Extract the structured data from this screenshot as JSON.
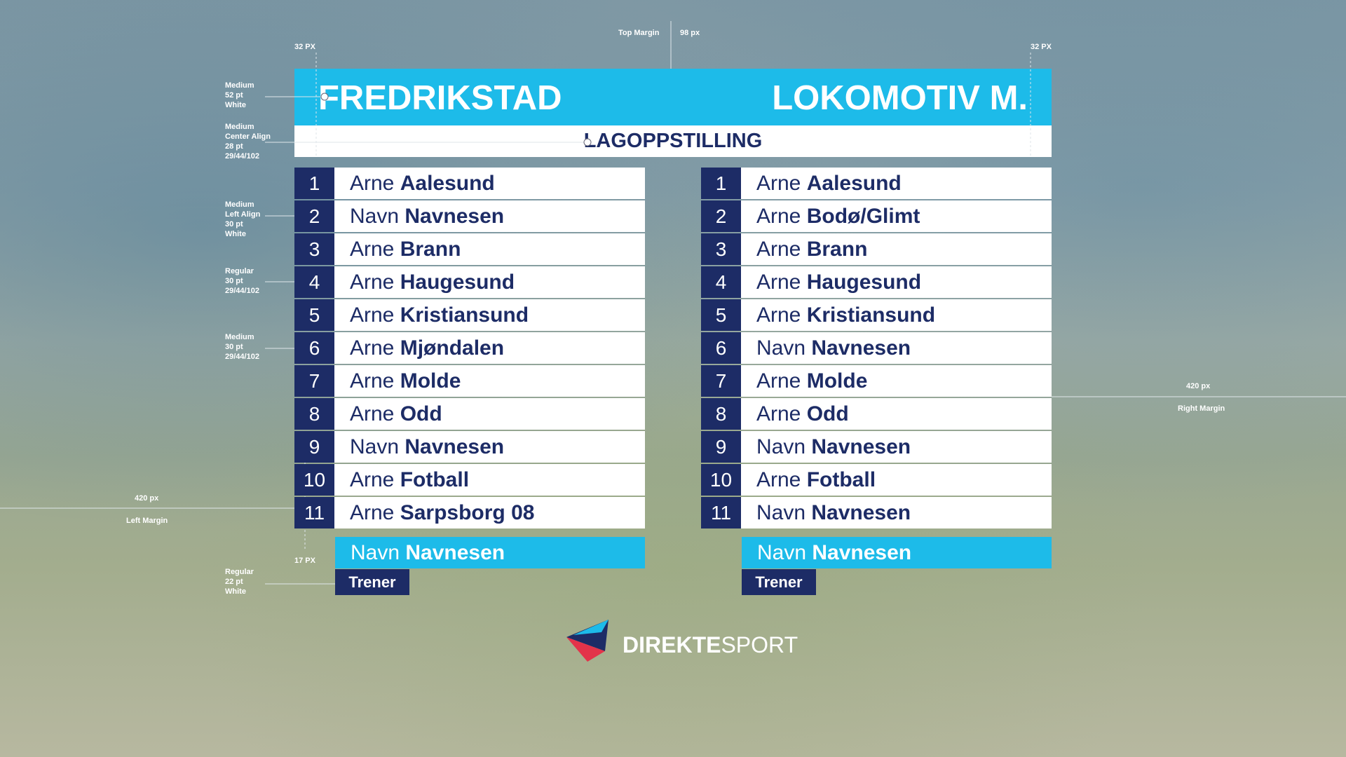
{
  "header": {
    "home": "FREDRIKSTAD",
    "away": "LOKOMOTIV M.",
    "title": "LAGOPPSTILLING"
  },
  "teams": [
    {
      "players": [
        {
          "number": "1",
          "first": "Arne",
          "last": "Aalesund"
        },
        {
          "number": "2",
          "first": "Navn",
          "last": "Navnesen"
        },
        {
          "number": "3",
          "first": "Arne",
          "last": "Brann"
        },
        {
          "number": "4",
          "first": "Arne",
          "last": "Haugesund"
        },
        {
          "number": "5",
          "first": "Arne",
          "last": "Kristiansund"
        },
        {
          "number": "6",
          "first": "Arne",
          "last": "Mjøndalen"
        },
        {
          "number": "7",
          "first": "Arne",
          "last": "Molde"
        },
        {
          "number": "8",
          "first": "Arne",
          "last": "Odd"
        },
        {
          "number": "9",
          "first": "Navn",
          "last": "Navnesen"
        },
        {
          "number": "10",
          "first": "Arne",
          "last": "Fotball"
        },
        {
          "number": "11",
          "first": "Arne",
          "last": "Sarpsborg 08"
        }
      ],
      "coach": {
        "first": "Navn",
        "last": "Navnesen",
        "role": "Trener"
      }
    },
    {
      "players": [
        {
          "number": "1",
          "first": "Arne",
          "last": "Aalesund"
        },
        {
          "number": "2",
          "first": "Arne",
          "last": "Bodø/Glimt"
        },
        {
          "number": "3",
          "first": "Arne",
          "last": "Brann"
        },
        {
          "number": "4",
          "first": "Arne",
          "last": "Haugesund"
        },
        {
          "number": "5",
          "first": "Arne",
          "last": "Kristiansund"
        },
        {
          "number": "6",
          "first": "Navn",
          "last": "Navnesen"
        },
        {
          "number": "7",
          "first": "Arne",
          "last": "Molde"
        },
        {
          "number": "8",
          "first": "Arne",
          "last": "Odd"
        },
        {
          "number": "9",
          "first": "Navn",
          "last": "Navnesen"
        },
        {
          "number": "10",
          "first": "Arne",
          "last": "Fotball"
        },
        {
          "number": "11",
          "first": "Navn",
          "last": "Navnesen"
        }
      ],
      "coach": {
        "first": "Navn",
        "last": "Navnesen",
        "role": "Trener"
      }
    }
  ],
  "logo": {
    "bold": "DIREKTE",
    "light": "SPORT"
  },
  "annotations": [
    {
      "lines": [
        "Top Margin"
      ]
    },
    {
      "lines": [
        "98 px"
      ]
    },
    {
      "lines": [
        "32 PX"
      ]
    },
    {
      "lines": [
        "32 PX"
      ]
    },
    {
      "lines": [
        "Medium",
        "52 pt",
        "White"
      ]
    },
    {
      "lines": [
        "Medium",
        "Center Align",
        "28 pt",
        "29/44/102"
      ]
    },
    {
      "lines": [
        "Medium",
        "Left Align",
        "30 pt",
        "White"
      ]
    },
    {
      "lines": [
        "Regular",
        "30 pt",
        "29/44/102"
      ]
    },
    {
      "lines": [
        "Medium",
        "30 pt",
        "29/44/102"
      ]
    },
    {
      "lines": [
        "420 px"
      ]
    },
    {
      "lines": [
        "Left Margin"
      ]
    },
    {
      "lines": [
        "17 PX"
      ]
    },
    {
      "lines": [
        "Regular",
        "22 pt",
        "White"
      ]
    },
    {
      "lines": [
        "420 px"
      ]
    },
    {
      "lines": [
        "Right Margin"
      ]
    }
  ]
}
